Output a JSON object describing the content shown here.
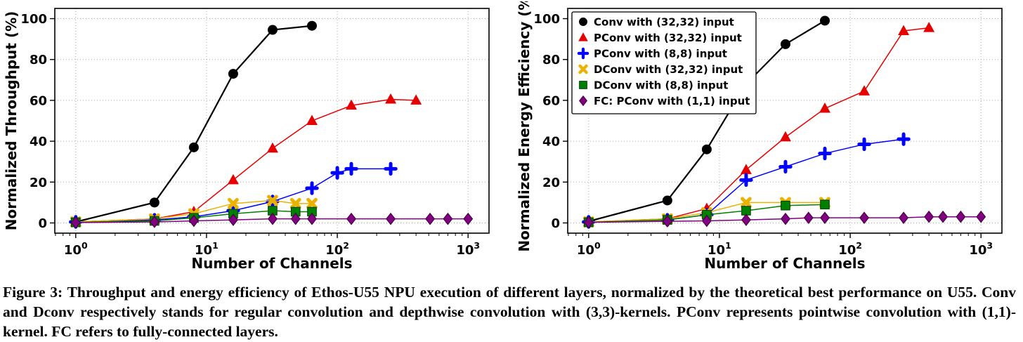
{
  "figure": {
    "caption": "Figure 3: Throughput and energy efficiency of Ethos-U55 NPU execution of different layers, normalized by the theoretical best performance on U55. Conv and Dconv respectively stands for regular convolution and depthwise convolution with (3,3)-kernels. PConv represents pointwise convolution with (1,1)-kernel. FC refers to fully-connected layers."
  },
  "chart_data": [
    {
      "name": "normalized-throughput",
      "type": "line",
      "title": "",
      "xlabel": "Number of Channels",
      "ylabel": "Normalized Throughput (%)",
      "xscale": "log",
      "xlim": [
        1,
        1000
      ],
      "ylim": [
        0,
        100
      ],
      "xticks": [
        1,
        10,
        100,
        1000
      ],
      "xtick_labels": [
        "10^0",
        "10^1",
        "10^2",
        "10^3"
      ],
      "yticks": [
        0,
        20,
        40,
        60,
        80,
        100
      ],
      "grid": true,
      "legend": {
        "show": false,
        "location": "upper left"
      },
      "series": [
        {
          "name": "Conv with (32,32) input",
          "marker": "circle",
          "color": "#000000",
          "line_width": 2.2,
          "x": [
            1,
            4,
            8,
            16,
            32,
            64
          ],
          "y": [
            0.5,
            10,
            37,
            73,
            94.5,
            96.5
          ]
        },
        {
          "name": "PConv with (32,32) input",
          "marker": "triangle",
          "color": "#e60000",
          "line_width": 1.5,
          "x": [
            1,
            4,
            8,
            16,
            32,
            64,
            128,
            256,
            400
          ],
          "y": [
            0.5,
            2,
            5.5,
            21,
            36.5,
            50,
            57.5,
            60.5,
            60
          ]
        },
        {
          "name": "PConv with (8,8) input",
          "marker": "plus",
          "color": "#0000ff",
          "line_width": 1.5,
          "x": [
            1,
            4,
            8,
            16,
            32,
            64,
            100,
            128,
            256
          ],
          "y": [
            0.5,
            1.5,
            3,
            6,
            10.5,
            17,
            24.5,
            26.5,
            26.5
          ]
        },
        {
          "name": "DConv with (32,32) input",
          "marker": "x",
          "color": "#ecb200",
          "line_width": 1.5,
          "x": [
            1,
            4,
            8,
            16,
            32,
            48,
            64
          ],
          "y": [
            0.5,
            2,
            4.5,
            9.5,
            11,
            9.5,
            9.5
          ]
        },
        {
          "name": "DConv with (8,8) input",
          "marker": "square",
          "color": "#008000",
          "line_width": 1.5,
          "x": [
            1,
            4,
            8,
            16,
            32,
            48,
            64
          ],
          "y": [
            0.3,
            1,
            2.5,
            4.5,
            6,
            5.5,
            5.5
          ]
        },
        {
          "name": "FC: PConv with (1,1) input",
          "marker": "diamond",
          "color": "#800080",
          "line_width": 1.5,
          "x": [
            1,
            4,
            8,
            16,
            32,
            48,
            64,
            128,
            256,
            512,
            700,
            1000
          ],
          "y": [
            0.2,
            0.5,
            1,
            1.5,
            2,
            2,
            2,
            2,
            2,
            2,
            2,
            2
          ]
        }
      ]
    },
    {
      "name": "normalized-energy-efficiency",
      "type": "line",
      "title": "",
      "xlabel": "Number of Channels",
      "ylabel": "Normalized Energy Efficiency (%)",
      "xscale": "log",
      "xlim": [
        1,
        1000
      ],
      "ylim": [
        0,
        100
      ],
      "xticks": [
        1,
        10,
        100,
        1000
      ],
      "xtick_labels": [
        "10^0",
        "10^1",
        "10^2",
        "10^3"
      ],
      "yticks": [
        0,
        20,
        40,
        60,
        80,
        100
      ],
      "grid": true,
      "legend": {
        "show": true,
        "location": "upper left"
      },
      "series": [
        {
          "name": "Conv with (32,32) input",
          "marker": "circle",
          "color": "#000000",
          "line_width": 2.2,
          "x": [
            1,
            4,
            8,
            16,
            32,
            64
          ],
          "y": [
            0.8,
            11,
            36,
            68,
            87.5,
            99
          ]
        },
        {
          "name": "PConv with (32,32) input",
          "marker": "triangle",
          "color": "#e60000",
          "line_width": 1.5,
          "x": [
            1,
            4,
            8,
            16,
            32,
            64,
            128,
            256,
            400
          ],
          "y": [
            0.5,
            2,
            7,
            26,
            42,
            56,
            64.5,
            94,
            95.5
          ]
        },
        {
          "name": "PConv with (8,8) input",
          "marker": "plus",
          "color": "#0000ff",
          "line_width": 1.5,
          "x": [
            1,
            4,
            8,
            16,
            32,
            64,
            128,
            256
          ],
          "y": [
            0.5,
            1.5,
            4,
            21,
            27.5,
            34,
            38.5,
            41
          ]
        },
        {
          "name": "DConv with (32,32) input",
          "marker": "x",
          "color": "#ecb200",
          "line_width": 1.5,
          "x": [
            1,
            4,
            8,
            16,
            32,
            64
          ],
          "y": [
            0.5,
            2,
            5,
            10,
            10,
            10
          ]
        },
        {
          "name": "DConv with (8,8) input",
          "marker": "square",
          "color": "#008000",
          "line_width": 1.5,
          "x": [
            1,
            4,
            8,
            16,
            32,
            64
          ],
          "y": [
            0.3,
            1.5,
            4,
            6,
            8.5,
            9
          ]
        },
        {
          "name": "FC: PConv with (1,1) input",
          "marker": "diamond",
          "color": "#800080",
          "line_width": 1.5,
          "x": [
            1,
            4,
            8,
            16,
            32,
            48,
            64,
            128,
            256,
            400,
            512,
            700,
            1000
          ],
          "y": [
            0.3,
            0.8,
            1,
            1.5,
            2,
            2.5,
            2.5,
            2.5,
            2.5,
            3,
            3,
            3,
            3
          ]
        }
      ]
    }
  ]
}
